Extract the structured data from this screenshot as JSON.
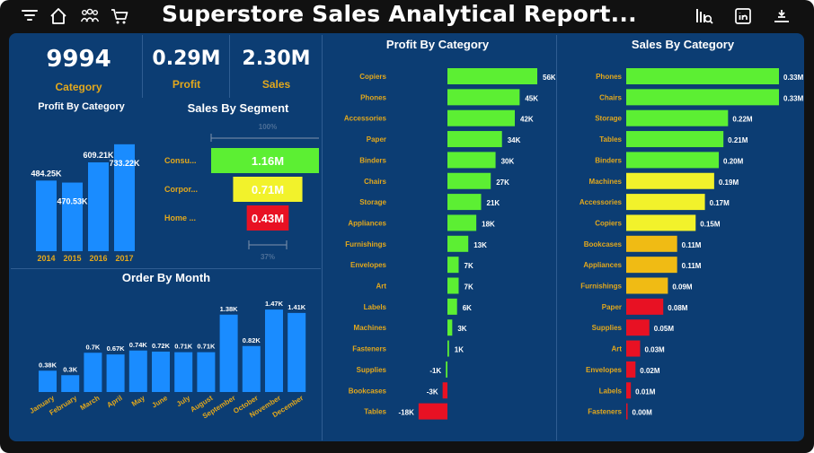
{
  "header": {
    "title": "Superstore Sales Analytical Report...",
    "icons_left": [
      "filter-icon",
      "home-icon",
      "people-icon",
      "cart-icon"
    ],
    "icons_right": [
      "search-report-icon",
      "linkedin-icon",
      "collapse-icon"
    ]
  },
  "kpis": {
    "category_value": "9994",
    "category_label": "Category",
    "profit_value": "0.29M",
    "profit_label": "Profit",
    "sales_value": "2.30M",
    "sales_label": "Sales"
  },
  "colors": {
    "canvas": "#0c3d73",
    "bar_blue": "#1a8cff",
    "green": "#5cef33",
    "yellow": "#f2f22b",
    "orange": "#f0bb14",
    "red": "#e81123",
    "accent_gold": "#e3a81c"
  },
  "chart_data": [
    {
      "id": "profit_by_year",
      "type": "bar",
      "title": "Profit By Category",
      "categories": [
        "2014",
        "2015",
        "2016",
        "2017"
      ],
      "values": [
        484.25,
        470.53,
        609.21,
        733.22
      ],
      "labels": [
        "484.25K",
        "470.53K",
        "609.21K",
        "733.22K"
      ],
      "ylim": [
        0,
        800
      ]
    },
    {
      "id": "sales_by_segment",
      "type": "bar",
      "title": "Sales By Segment",
      "categories": [
        "Consu...",
        "Corpor...",
        "Home ..."
      ],
      "values": [
        1.16,
        0.71,
        0.43
      ],
      "labels": [
        "1.16M",
        "0.71M",
        "0.43M"
      ],
      "top_note": "100%",
      "bottom_note": "37%"
    },
    {
      "id": "order_by_month",
      "type": "bar",
      "title": "Order By Month",
      "categories": [
        "January",
        "February",
        "March",
        "April",
        "May",
        "June",
        "July",
        "August",
        "September",
        "October",
        "November",
        "December"
      ],
      "values": [
        0.38,
        0.3,
        0.7,
        0.67,
        0.74,
        0.72,
        0.71,
        0.71,
        1.38,
        0.82,
        1.47,
        1.41
      ],
      "labels": [
        "0.38K",
        "0.3K",
        "0.7K",
        "0.67K",
        "0.74K",
        "0.72K",
        "0.71K",
        "0.71K",
        "1.38K",
        "0.82K",
        "1.47K",
        "1.41K"
      ],
      "ylim": [
        0,
        1.6
      ]
    },
    {
      "id": "profit_by_category",
      "type": "bar",
      "title": "Profit By Category",
      "categories": [
        "Copiers",
        "Phones",
        "Accessories",
        "Paper",
        "Binders",
        "Chairs",
        "Storage",
        "Appliances",
        "Furnishings",
        "Envelopes",
        "Art",
        "Labels",
        "Machines",
        "Fasteners",
        "Supplies",
        "Bookcases",
        "Tables"
      ],
      "values": [
        56,
        45,
        42,
        34,
        30,
        27,
        21,
        18,
        13,
        7,
        7,
        6,
        3,
        1,
        -1,
        -3,
        -18
      ],
      "labels": [
        "56K",
        "45K",
        "42K",
        "34K",
        "30K",
        "27K",
        "21K",
        "18K",
        "13K",
        "7K",
        "7K",
        "6K",
        "3K",
        "1K",
        "-1K",
        "-3K",
        "-18K"
      ],
      "xlim": [
        -18,
        56
      ]
    },
    {
      "id": "sales_by_category",
      "type": "bar",
      "title": "Sales By Category",
      "categories": [
        "Phones",
        "Chairs",
        "Storage",
        "Tables",
        "Binders",
        "Machines",
        "Accessories",
        "Copiers",
        "Bookcases",
        "Appliances",
        "Furnishings",
        "Paper",
        "Supplies",
        "Art",
        "Envelopes",
        "Labels",
        "Fasteners"
      ],
      "values": [
        0.33,
        0.33,
        0.22,
        0.21,
        0.2,
        0.19,
        0.17,
        0.15,
        0.11,
        0.11,
        0.09,
        0.08,
        0.05,
        0.03,
        0.02,
        0.01,
        0.0
      ],
      "labels": [
        "0.33M",
        "0.33M",
        "0.22M",
        "0.21M",
        "0.20M",
        "0.19M",
        "0.17M",
        "0.15M",
        "0.11M",
        "0.11M",
        "0.09M",
        "0.08M",
        "0.05M",
        "0.03M",
        "0.02M",
        "0.01M",
        "0.00M"
      ],
      "xlim": [
        0,
        0.33
      ]
    }
  ]
}
